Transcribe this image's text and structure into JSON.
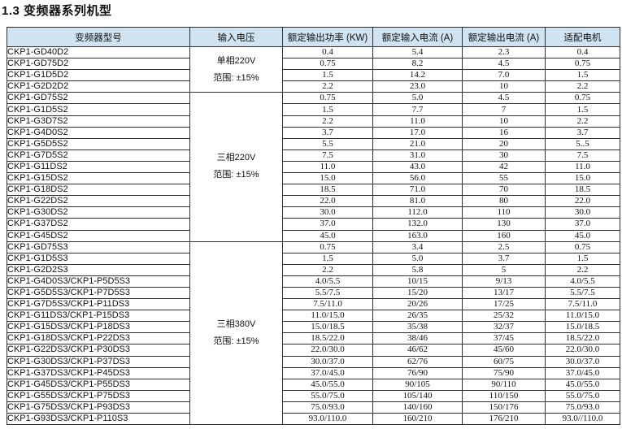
{
  "title": "1.3 变频器系列机型",
  "colors": {
    "header_bg": "#cfe3f0",
    "border": "#2e2e2e",
    "text": "#111111"
  },
  "table": {
    "headers": [
      "变频器型号",
      "输入电压",
      "额定输出功率 (KW)",
      "额定输入电流 (A)",
      "额定输出电流 (A)",
      "适配电机"
    ],
    "sections": [
      {
        "voltage": [
          "单相220V",
          "范围: ±15%"
        ],
        "rows": [
          [
            "CKP1-GD40D2",
            "0.4",
            "5.4",
            "2.3",
            "0.4"
          ],
          [
            "CKP1-GD75D2",
            "0.75",
            "8.2",
            "4.5",
            "0.75"
          ],
          [
            "CKP1-G1D5D2",
            "1.5",
            "14.2",
            "7.0",
            "1.5"
          ],
          [
            "CKP1-G2D2D2",
            "2.2",
            "23.0",
            "10",
            "2.2"
          ]
        ]
      },
      {
        "voltage": [
          "三相220V",
          "范围: ±15%"
        ],
        "rows": [
          [
            "CKP1-GD75S2",
            "0.75",
            "5.0",
            "4.5",
            "0.75"
          ],
          [
            "CKP1-G1D5S2",
            "1.5",
            "7.7",
            "7",
            "1.5"
          ],
          [
            "CKP1-G3D7S2",
            "2.2",
            "11.0",
            "10",
            "2.2"
          ],
          [
            "CKP1-G4D0S2",
            "3.7",
            "17.0",
            "16",
            "3.7"
          ],
          [
            "CKP1-G5D5S2",
            "5.5",
            "21.0",
            "20",
            "5..5"
          ],
          [
            "CKP1-G7D5S2",
            "7.5",
            "31.0",
            "30",
            "7.5"
          ],
          [
            "CKP1-G11DS2",
            "11.0",
            "43.0",
            "42",
            "11.0"
          ],
          [
            "CKP1-G15DS2",
            "15.0",
            "56.0",
            "55",
            "15.0"
          ],
          [
            "CKP1-G18DS2",
            "18.5",
            "71.0",
            "70",
            "18.5"
          ],
          [
            "CKP1-G22DS2",
            "22.0",
            "81.0",
            "80",
            "22.0"
          ],
          [
            "CKP1-G30DS2",
            "30.0",
            "112.0",
            "110",
            "30.0"
          ],
          [
            "CKP1-G37DS2",
            "37.0",
            "132.0",
            "130",
            "37.0"
          ],
          [
            "CKP1-G45DS2",
            "45.0",
            "163.0",
            "160",
            "45.0"
          ]
        ]
      },
      {
        "voltage": [
          "三相380V",
          "范围: ±15%"
        ],
        "rows": [
          [
            "CKP1-GD75S3",
            "0.75",
            "3.4",
            "2.5",
            "0.75"
          ],
          [
            "CKP1-G1D5S3",
            "1.5",
            "5.0",
            "3.7",
            "1.5"
          ],
          [
            "CKP1-G2D2S3",
            "2.2",
            "5.8",
            "5",
            "2.2"
          ],
          [
            "CKP1-G4D0S3/CKP1-P5D5S3",
            "4.0/5.5",
            "10/15",
            "9/13",
            "4.0/5.5"
          ],
          [
            "CKP1-G5D5S3/CKP1-P7D5S3",
            "5.5/7.5",
            "15/20",
            "13/17",
            "5.5/7.5"
          ],
          [
            "CKP1-G7D5S3/CKP1-P11DS3",
            "7.5/11.0",
            "20/26",
            "17/25",
            "7.5/11.0"
          ],
          [
            "CKP1-G11DS3/CKP1-P15DS3",
            "11.0/15.0",
            "26/35",
            "25/32",
            "11.0/15.0"
          ],
          [
            "CKP1-G15DS3/CKP1-P18DS3",
            "15.0/18.5",
            "35/38",
            "32/37",
            "15.0/18.5"
          ],
          [
            "CKP1-G18DS3/CKP1-P22DS3",
            "18.5/22.0",
            "38/46",
            "37/45",
            "18.5/22.0"
          ],
          [
            "CKP1-G22DS3/CKP1-P30DS3",
            "22.0/30.0",
            "46/62",
            "45/60",
            "22.0/30.0"
          ],
          [
            "CKP1-G30DS3/CKP1-P37DS3",
            "30.0/37.0",
            "62/76",
            "60/75",
            "30.0/37.0"
          ],
          [
            "CKP1-G37DS3/CKP1-P45DS3",
            "37.0/45.0",
            "76/90",
            "75/90",
            "37.0/45.0"
          ],
          [
            "CKP1-G45DS3/CKP1-P55DS3",
            "45.0/55.0",
            "90/105",
            "90/110",
            "45.0/55.0"
          ],
          [
            "CKP1-G55DS3/CKP1-P75DS3",
            "55.0/75.0",
            "105/140",
            "110/150",
            "55.0/75.0"
          ],
          [
            "CKP1-G75DS3/CKP1-P93DS3",
            "75.0/93.0",
            "140/160",
            "150/176",
            "75.0/93.0"
          ],
          [
            "CKP1-G93DS3/CKP1-P110S3",
            "93.0/110.0",
            "160/210",
            "176/210",
            "93.0//110.0"
          ]
        ]
      }
    ]
  }
}
